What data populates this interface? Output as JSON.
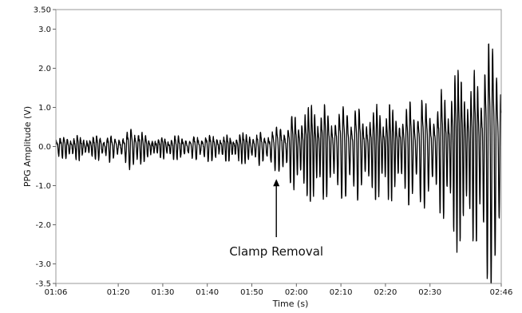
{
  "chart_data": {
    "type": "line",
    "title": "",
    "xlabel": "Time (s)",
    "ylabel": "PPG Amplitude (V)",
    "xlim_seconds": [
      66,
      166
    ],
    "ylim": [
      -3.5,
      3.5
    ],
    "grid": false,
    "x_tick_labels": [
      "01:06",
      "01:20",
      "01:30",
      "01:40",
      "01:50",
      "02:00",
      "02:10",
      "02:20",
      "02:30",
      "02:46"
    ],
    "x_tick_values_seconds": [
      66,
      80,
      90,
      100,
      110,
      120,
      130,
      140,
      150,
      166
    ],
    "y_tick_labels": [
      "-3.5",
      "-3.0",
      "-2.0",
      "-1.0",
      "0.0",
      "1.0",
      "2.0",
      "3.0",
      "3.50"
    ],
    "y_tick_values": [
      -3.5,
      -3.0,
      -2.0,
      -1.0,
      0.0,
      1.0,
      2.0,
      3.0,
      3.5
    ],
    "series": [
      {
        "name": "",
        "color": "#000000",
        "envelope_time_seconds": [
          66,
          80,
          84,
          86,
          88,
          100,
          110,
          115,
          117,
          119,
          120,
          125,
          130,
          140,
          150,
          155,
          157,
          160,
          163,
          166
        ],
        "envelope_amplitude": [
          0.25,
          0.3,
          0.55,
          0.3,
          0.25,
          0.3,
          0.35,
          0.45,
          0.6,
          0.85,
          1.05,
          1.15,
          1.1,
          1.1,
          1.3,
          1.7,
          2.4,
          2.0,
          2.8,
          3.1
        ]
      }
    ],
    "annotations": [
      {
        "text": "Clamp Removal",
        "x_seconds": 115.5,
        "y": -0.75
      }
    ]
  }
}
